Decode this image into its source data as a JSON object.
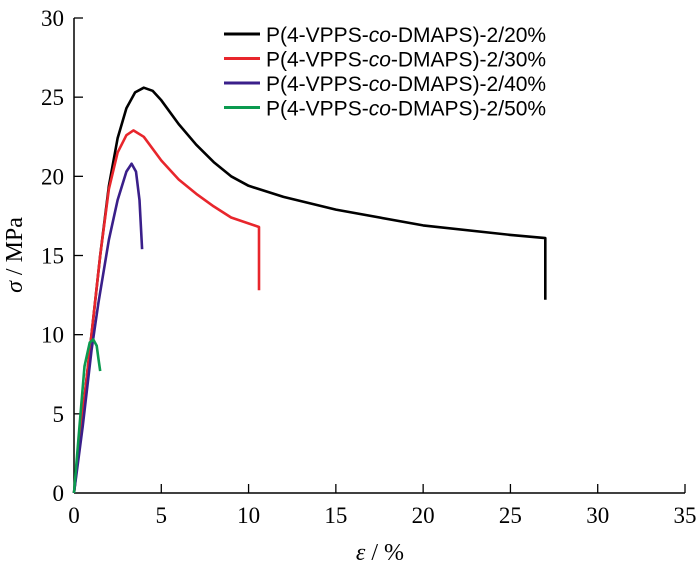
{
  "chart_data": {
    "type": "line",
    "xlabel": {
      "symbol": "ε",
      "unit": " / %"
    },
    "ylabel": {
      "symbol": "σ",
      "unit": " / MPa"
    },
    "xlim": [
      0,
      35
    ],
    "ylim": [
      0,
      30
    ],
    "xticks": [
      0,
      5,
      10,
      15,
      20,
      25,
      30,
      35
    ],
    "yticks": [
      5,
      10,
      15,
      20,
      25,
      30
    ],
    "grid": false,
    "legend_position": "top-right",
    "series": [
      {
        "name": "P(4-VPPS-co-DMAPS)-2/20%",
        "name_parts": [
          "P(4-VPPS-",
          "co",
          "-DMAPS)-2/20%"
        ],
        "color": "#000000",
        "points": [
          [
            0,
            0
          ],
          [
            0.5,
            5
          ],
          [
            1,
            10
          ],
          [
            1.5,
            15
          ],
          [
            2,
            19.4
          ],
          [
            2.5,
            22.4
          ],
          [
            3,
            24.3
          ],
          [
            3.5,
            25.3
          ],
          [
            4,
            25.6
          ],
          [
            4.5,
            25.4
          ],
          [
            5,
            24.8
          ],
          [
            6,
            23.3
          ],
          [
            7,
            22
          ],
          [
            8,
            20.9
          ],
          [
            9,
            20
          ],
          [
            10,
            19.4
          ],
          [
            12,
            18.7
          ],
          [
            15,
            17.9
          ],
          [
            20,
            16.9
          ],
          [
            25,
            16.3
          ],
          [
            27,
            16.1
          ],
          [
            27,
            12.2
          ]
        ]
      },
      {
        "name": "P(4-VPPS-co-DMAPS)-2/30%",
        "name_parts": [
          "P(4-VPPS-",
          "co",
          "-DMAPS)-2/30%"
        ],
        "color": "#e8262c",
        "points": [
          [
            0,
            0
          ],
          [
            0.5,
            5
          ],
          [
            1,
            10
          ],
          [
            1.5,
            15
          ],
          [
            2,
            19.2
          ],
          [
            2.5,
            21.5
          ],
          [
            3,
            22.6
          ],
          [
            3.4,
            22.9
          ],
          [
            4,
            22.5
          ],
          [
            5,
            21
          ],
          [
            6,
            19.8
          ],
          [
            7,
            18.9
          ],
          [
            8,
            18.1
          ],
          [
            9,
            17.4
          ],
          [
            10.6,
            16.8
          ],
          [
            10.6,
            12.8
          ]
        ]
      },
      {
        "name": "P(4-VPPS-co-DMAPS)-2/40%",
        "name_parts": [
          "P(4-VPPS-",
          "co",
          "-DMAPS)-2/40%"
        ],
        "color": "#3a1f8a",
        "points": [
          [
            0,
            0
          ],
          [
            0.5,
            4.2
          ],
          [
            1,
            9
          ],
          [
            1.4,
            12
          ],
          [
            2,
            16
          ],
          [
            2.5,
            18.5
          ],
          [
            3,
            20.3
          ],
          [
            3.3,
            20.8
          ],
          [
            3.55,
            20.3
          ],
          [
            3.75,
            18.5
          ],
          [
            3.9,
            15.4
          ]
        ]
      },
      {
        "name": "P(4-VPPS-co-DMAPS)-2/50%",
        "name_parts": [
          "P(4-VPPS-",
          "co",
          "-DMAPS)-2/50%"
        ],
        "color": "#0b9a4f",
        "points": [
          [
            0,
            0
          ],
          [
            0.3,
            4
          ],
          [
            0.6,
            8
          ],
          [
            0.9,
            9.5
          ],
          [
            1.1,
            9.7
          ],
          [
            1.3,
            9.3
          ],
          [
            1.4,
            8.5
          ],
          [
            1.5,
            7.7
          ]
        ]
      }
    ]
  }
}
